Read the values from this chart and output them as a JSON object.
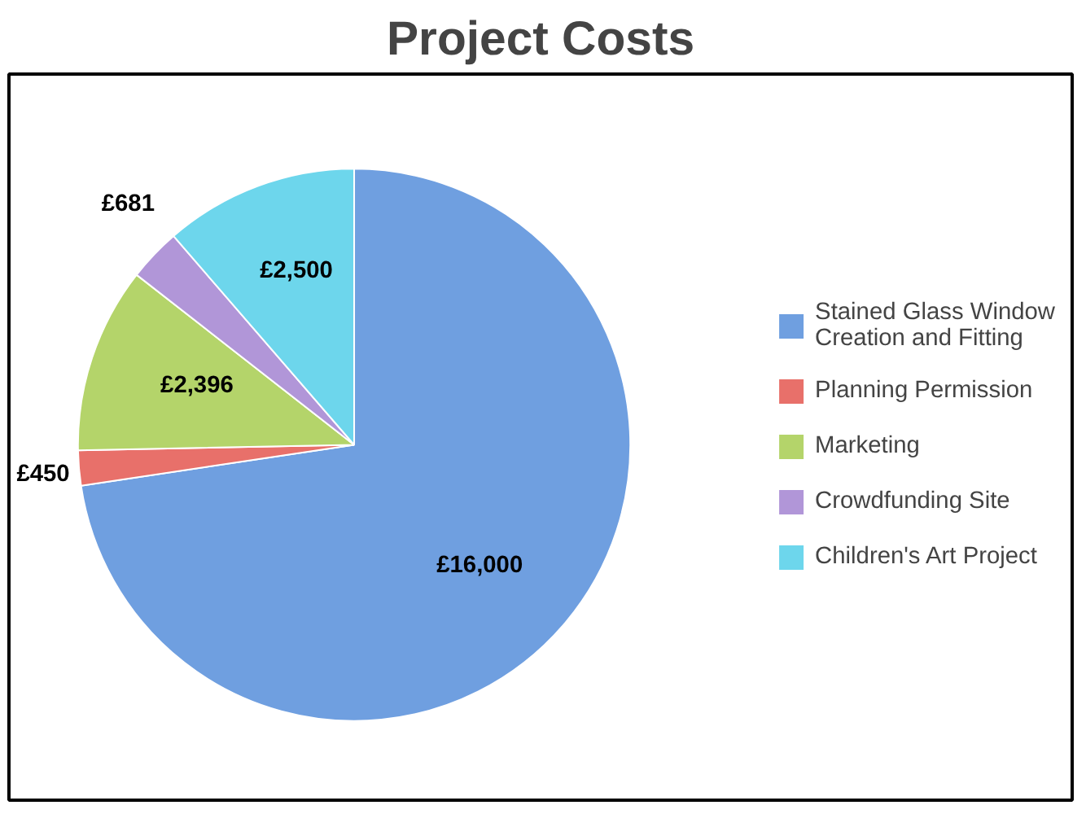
{
  "chart_data": {
    "type": "pie",
    "title": "Project Costs",
    "categories": [
      "Stained Glass Window Creation and Fitting",
      "Planning Permission",
      "Marketing",
      "Crowdfunding Site",
      "Children's Art Project"
    ],
    "values": [
      16000,
      450,
      2396,
      681,
      2500
    ],
    "colors": [
      "#6f9fe0",
      "#e8706a",
      "#b4d46a",
      "#b196d8",
      "#6dd6ec"
    ],
    "value_labels": [
      "£16,000",
      "£450",
      "£2,396",
      "£681",
      "£2,500"
    ],
    "legend": "right"
  }
}
